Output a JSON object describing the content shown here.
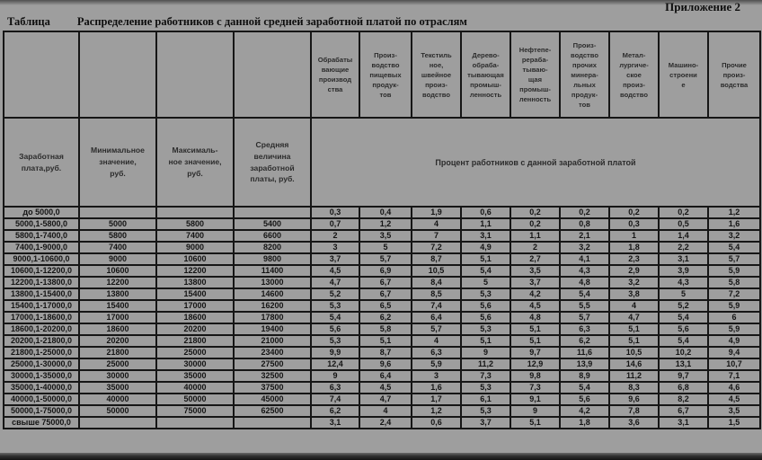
{
  "page": {
    "appendix": "Приложение 2",
    "table_label": "Таблица",
    "title": "Распределение работников с данной средней заработной платой по отраслям"
  },
  "table": {
    "left_headers": [
      "Заработная\nплата,руб.",
      "Минимальное\nзначение,\nруб.",
      "Максималь-\nное значение,\nруб.",
      "Средняя\nвеличина\nзаработной\nплаты, руб."
    ],
    "industry_headers": [
      "Обрабаты\nвающие\nпроизвод\nства",
      "Произ-\nводство\nпищевых\nпродук-\nтов",
      "Текстиль\nное,\nшвейное\nпроиз-\nводство",
      "Дерево-\nобраба-\nтывающая\nпромыш-\nленность",
      "Нефтепе-\nрераба-\nтываю-\nщая\nпромыш-\nленность",
      "Произ-\nводство\nпрочих\nминера-\nльных\nпродук-\nтов",
      "Метал-\nлургиче-\nское\nпроиз-\nводство",
      "Машино-\nстроени\nе",
      "Прочие\nпроиз-\nводства"
    ],
    "percent_header": "Процент работников с данной заработной платой",
    "rows": [
      {
        "range": "до 5000,0",
        "min": "",
        "max": "",
        "avg": "",
        "pct": [
          "0,3",
          "0,4",
          "1,9",
          "0,6",
          "0,2",
          "0,2",
          "0,2",
          "0,2",
          "1,2"
        ]
      },
      {
        "range": "5000,1-5800,0",
        "min": "5000",
        "max": "5800",
        "avg": "5400",
        "pct": [
          "0,7",
          "1,2",
          "4",
          "1,1",
          "0,2",
          "0,8",
          "0,3",
          "0,5",
          "1,6"
        ]
      },
      {
        "range": "5800,1-7400,0",
        "min": "5800",
        "max": "7400",
        "avg": "6600",
        "pct": [
          "2",
          "3,5",
          "7",
          "3,1",
          "1,1",
          "2,1",
          "1",
          "1,4",
          "3,2"
        ]
      },
      {
        "range": "7400,1-9000,0",
        "min": "7400",
        "max": "9000",
        "avg": "8200",
        "pct": [
          "3",
          "5",
          "7,2",
          "4,9",
          "2",
          "3,2",
          "1,8",
          "2,2",
          "5,4"
        ]
      },
      {
        "range": "9000,1-10600,0",
        "min": "9000",
        "max": "10600",
        "avg": "9800",
        "pct": [
          "3,7",
          "5,7",
          "8,7",
          "5,1",
          "2,7",
          "4,1",
          "2,3",
          "3,1",
          "5,7"
        ]
      },
      {
        "range": "10600,1-12200,0",
        "min": "10600",
        "max": "12200",
        "avg": "11400",
        "pct": [
          "4,5",
          "6,9",
          "10,5",
          "5,4",
          "3,5",
          "4,3",
          "2,9",
          "3,9",
          "5,9"
        ]
      },
      {
        "range": "12200,1-13800,0",
        "min": "12200",
        "max": "13800",
        "avg": "13000",
        "pct": [
          "4,7",
          "6,7",
          "8,4",
          "5",
          "3,7",
          "4,8",
          "3,2",
          "4,3",
          "5,8"
        ]
      },
      {
        "range": "13800,1-15400,0",
        "min": "13800",
        "max": "15400",
        "avg": "14600",
        "pct": [
          "5,2",
          "6,7",
          "8,5",
          "5,3",
          "4,2",
          "5,4",
          "3,8",
          "5",
          "7,2"
        ]
      },
      {
        "range": "15400,1-17000,0",
        "min": "15400",
        "max": "17000",
        "avg": "16200",
        "pct": [
          "5,3",
          "6,5",
          "7,4",
          "5,6",
          "4,5",
          "5,5",
          "4",
          "5,2",
          "5,9"
        ]
      },
      {
        "range": "17000,1-18600,0",
        "min": "17000",
        "max": "18600",
        "avg": "17800",
        "pct": [
          "5,4",
          "6,2",
          "6,4",
          "5,6",
          "4,8",
          "5,7",
          "4,7",
          "5,4",
          "6"
        ]
      },
      {
        "range": "18600,1-20200,0",
        "min": "18600",
        "max": "20200",
        "avg": "19400",
        "pct": [
          "5,6",
          "5,8",
          "5,7",
          "5,3",
          "5,1",
          "6,3",
          "5,1",
          "5,6",
          "5,9"
        ]
      },
      {
        "range": "20200,1-21800,0",
        "min": "20200",
        "max": "21800",
        "avg": "21000",
        "pct": [
          "5,3",
          "5,1",
          "4",
          "5,1",
          "5,1",
          "6,2",
          "5,1",
          "5,4",
          "4,9"
        ]
      },
      {
        "range": "21800,1-25000,0",
        "min": "21800",
        "max": "25000",
        "avg": "23400",
        "pct": [
          "9,9",
          "8,7",
          "6,3",
          "9",
          "9,7",
          "11,6",
          "10,5",
          "10,2",
          "9,4"
        ]
      },
      {
        "range": "25000,1-30000,0",
        "min": "25000",
        "max": "30000",
        "avg": "27500",
        "pct": [
          "12,4",
          "9,6",
          "5,9",
          "11,2",
          "12,9",
          "13,9",
          "14,6",
          "13,1",
          "10,7"
        ]
      },
      {
        "range": "30000,1-35000,0",
        "min": "30000",
        "max": "35000",
        "avg": "32500",
        "pct": [
          "9",
          "6,4",
          "3",
          "7,3",
          "9,8",
          "8,9",
          "11,2",
          "9,7",
          "7,1"
        ]
      },
      {
        "range": "35000,1-40000,0",
        "min": "35000",
        "max": "40000",
        "avg": "37500",
        "pct": [
          "6,3",
          "4,5",
          "1,6",
          "5,3",
          "7,3",
          "5,4",
          "8,3",
          "6,8",
          "4,6"
        ]
      },
      {
        "range": "40000,1-50000,0",
        "min": "40000",
        "max": "50000",
        "avg": "45000",
        "pct": [
          "7,4",
          "4,7",
          "1,7",
          "6,1",
          "9,1",
          "5,6",
          "9,6",
          "8,2",
          "4,5"
        ]
      },
      {
        "range": "50000,1-75000,0",
        "min": "50000",
        "max": "75000",
        "avg": "62500",
        "pct": [
          "6,2",
          "4",
          "1,2",
          "5,3",
          "9",
          "4,2",
          "7,8",
          "6,7",
          "3,5"
        ]
      },
      {
        "range": "свыше 75000,0",
        "min": "",
        "max": "",
        "avg": "",
        "pct": [
          "3,1",
          "2,4",
          "0,6",
          "3,7",
          "5,1",
          "1,8",
          "3,6",
          "3,1",
          "1,5"
        ]
      }
    ]
  },
  "colors": {
    "page_background": "#9e9e9e",
    "border": "#161616",
    "text": "#141414"
  }
}
